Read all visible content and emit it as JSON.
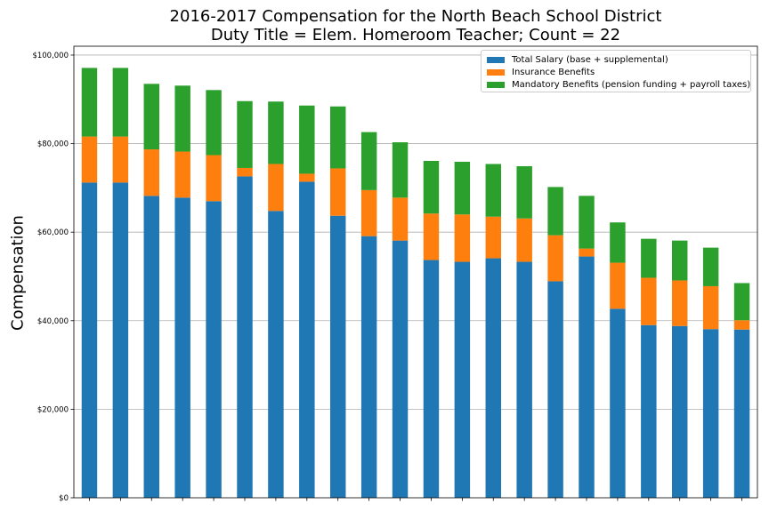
{
  "chart_data": {
    "type": "bar",
    "stacked": true,
    "title": "2016-2017 Compensation for the North Beach School District",
    "subtitle": "Duty Title = Elem. Homeroom Teacher; Count = 22",
    "xlabel": "",
    "ylabel": "Compensation",
    "ylim": [
      0,
      102000
    ],
    "yticks": [
      0,
      20000,
      40000,
      60000,
      80000,
      100000
    ],
    "ytick_labels": [
      "$0",
      "$20,000",
      "$40,000",
      "$60,000",
      "$80,000",
      "$100,000"
    ],
    "grid": true,
    "legend_position": "top-right",
    "series": [
      {
        "name": "Total Salary (base + supplemental)",
        "color": "#1f77b4",
        "values": [
          71200,
          71200,
          68200,
          67800,
          67000,
          72600,
          64800,
          71400,
          63700,
          59100,
          58100,
          53700,
          53300,
          54100,
          53300,
          48900,
          54500,
          42700,
          39000,
          38800,
          38100,
          38000
        ]
      },
      {
        "name": "Insurance Benefits",
        "color": "#ff7f0e",
        "values": [
          10400,
          10400,
          10500,
          10400,
          10400,
          1900,
          10600,
          1800,
          10700,
          10400,
          9700,
          10500,
          10700,
          9400,
          9800,
          10400,
          1800,
          10400,
          10700,
          10300,
          9700,
          2100
        ]
      },
      {
        "name": "Mandatory Benefits (pension funding + payroll taxes)",
        "color": "#2ca02c",
        "values": [
          15500,
          15500,
          14800,
          14900,
          14700,
          15100,
          14100,
          15400,
          14000,
          13100,
          12500,
          11900,
          11900,
          11900,
          11800,
          10900,
          11900,
          9100,
          8800,
          9000,
          8700,
          8400
        ]
      }
    ]
  }
}
